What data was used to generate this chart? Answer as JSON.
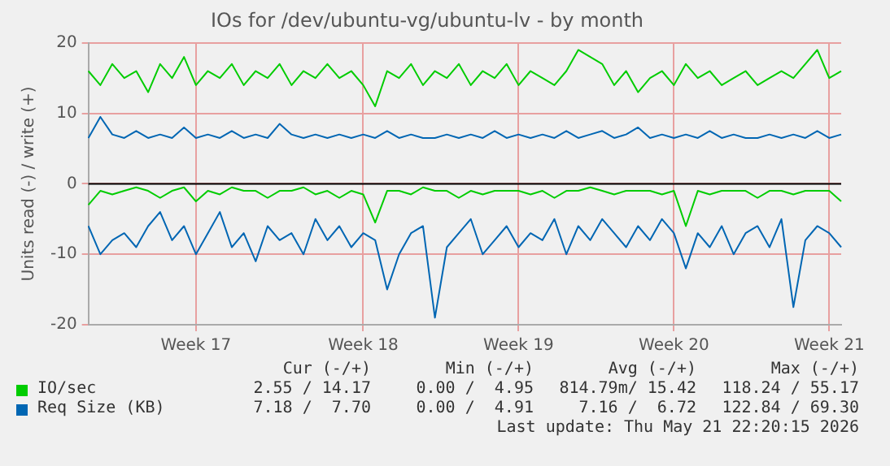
{
  "chart_data": {
    "type": "line",
    "title": "IOs for /dev/ubuntu-vg/ubuntu-lv - by month",
    "ylabel": "Units read (-) / write (+)",
    "categories": [
      null,
      null,
      null,
      null,
      null,
      null,
      null,
      null,
      null,
      "Week 17",
      null,
      null,
      null,
      null,
      null,
      null,
      null,
      null,
      null,
      null,
      null,
      null,
      null,
      "Week 18",
      null,
      null,
      null,
      null,
      null,
      null,
      null,
      null,
      null,
      null,
      null,
      null,
      "Week 19",
      null,
      null,
      null,
      null,
      null,
      null,
      null,
      null,
      null,
      null,
      null,
      null,
      "Week 20",
      null,
      null,
      null,
      null,
      null,
      null,
      null,
      null,
      null,
      null,
      null,
      null,
      "Week 21",
      null
    ],
    "series": [
      {
        "color": "#00cc00",
        "values": [
          -3,
          -1,
          -1.5,
          -1,
          -0.5,
          -1,
          -2,
          -1,
          -0.5,
          -2.5,
          -1,
          -1.5,
          -0.5,
          -1,
          -1,
          -2,
          -1,
          -1,
          -0.5,
          -1.5,
          -1,
          -2,
          -1,
          -1.5,
          -5.5,
          -1,
          -1,
          -1.5,
          -0.5,
          -1,
          -1,
          -2,
          -1,
          -1.5,
          -1,
          -1,
          -1,
          -1.5,
          -1,
          -2,
          -1,
          -1,
          -0.5,
          -1,
          -1.5,
          -1,
          -1,
          -1,
          -1.5,
          -1,
          -6,
          -1,
          -1.5,
          -1,
          -1,
          -1,
          -2,
          -1,
          -1,
          -1.5,
          -1,
          -1,
          -1,
          -2.5
        ]
      },
      {
        "color": "#0066b3",
        "values": [
          -6,
          -10,
          -8,
          -7,
          -9,
          -6,
          -4,
          -8,
          -6,
          -10,
          -7,
          -4,
          -9,
          -7,
          -11,
          -6,
          -8,
          -7,
          -10,
          -5,
          -8,
          -6,
          -9,
          -7,
          -8,
          -15,
          -10,
          -7,
          -6,
          -19,
          -9,
          -7,
          -5,
          -10,
          -8,
          -6,
          -9,
          -7,
          -8,
          -5,
          -10,
          -6,
          -8,
          -5,
          -7,
          -9,
          -6,
          -8,
          -5,
          -7,
          -12,
          -7,
          -9,
          -6,
          -10,
          -7,
          -6,
          -9,
          -5,
          -17.5,
          -8,
          -6,
          -7,
          -9
        ]
      },
      {
        "name": "IO/sec",
        "color": "#00cc00",
        "values": [
          16,
          14,
          17,
          15,
          16,
          13,
          17,
          15,
          18,
          14,
          16,
          15,
          17,
          14,
          16,
          15,
          17,
          14,
          16,
          15,
          17,
          15,
          16,
          14,
          11,
          16,
          15,
          17,
          14,
          16,
          15,
          17,
          14,
          16,
          15,
          17,
          14,
          16,
          15,
          14,
          16,
          19,
          18,
          17,
          14,
          16,
          13,
          15,
          16,
          14,
          17,
          15,
          16,
          14,
          15,
          16,
          14,
          15,
          16,
          15,
          17,
          19,
          15,
          16
        ]
      },
      {
        "name": "Req Size (KB)",
        "color": "#0066b3",
        "values": [
          6.5,
          9.5,
          7,
          6.5,
          7.5,
          6.5,
          7,
          6.5,
          8,
          6.5,
          7,
          6.5,
          7.5,
          6.5,
          7,
          6.5,
          8.5,
          7,
          6.5,
          7,
          6.5,
          7,
          6.5,
          7,
          6.5,
          7.5,
          6.5,
          7,
          6.5,
          6.5,
          7,
          6.5,
          7,
          6.5,
          7.5,
          6.5,
          7,
          6.5,
          7,
          6.5,
          7.5,
          6.5,
          7,
          7.5,
          6.5,
          7,
          8,
          6.5,
          7,
          6.5,
          7,
          6.5,
          7.5,
          6.5,
          7,
          6.5,
          6.5,
          7,
          6.5,
          7,
          6.5,
          7.5,
          6.5,
          7
        ]
      }
    ],
    "ylim": [
      -20,
      20
    ],
    "yticks": [
      -20,
      -10,
      0,
      10,
      20
    ],
    "grid": true,
    "legend": "bottom",
    "marker": "none",
    "line_style": "solid",
    "ref_lines": [
      {
        "axis": "y",
        "value": 0,
        "color": "#000000"
      }
    ],
    "annotations": [
      "Cur (-/+)",
      "Min (-/+)",
      "Avg (-/+)",
      "Max (-/+)",
      "2.55 / 14.17",
      "0.00 /  4.95",
      "814.79m/ 15.42",
      "118.24 / 55.17",
      "7.18 /  7.70",
      "0.00 /  4.91",
      "7.16 /  6.72",
      "122.84 / 69.30",
      "Last update: Thu May 21 22:20:15 2026"
    ]
  }
}
